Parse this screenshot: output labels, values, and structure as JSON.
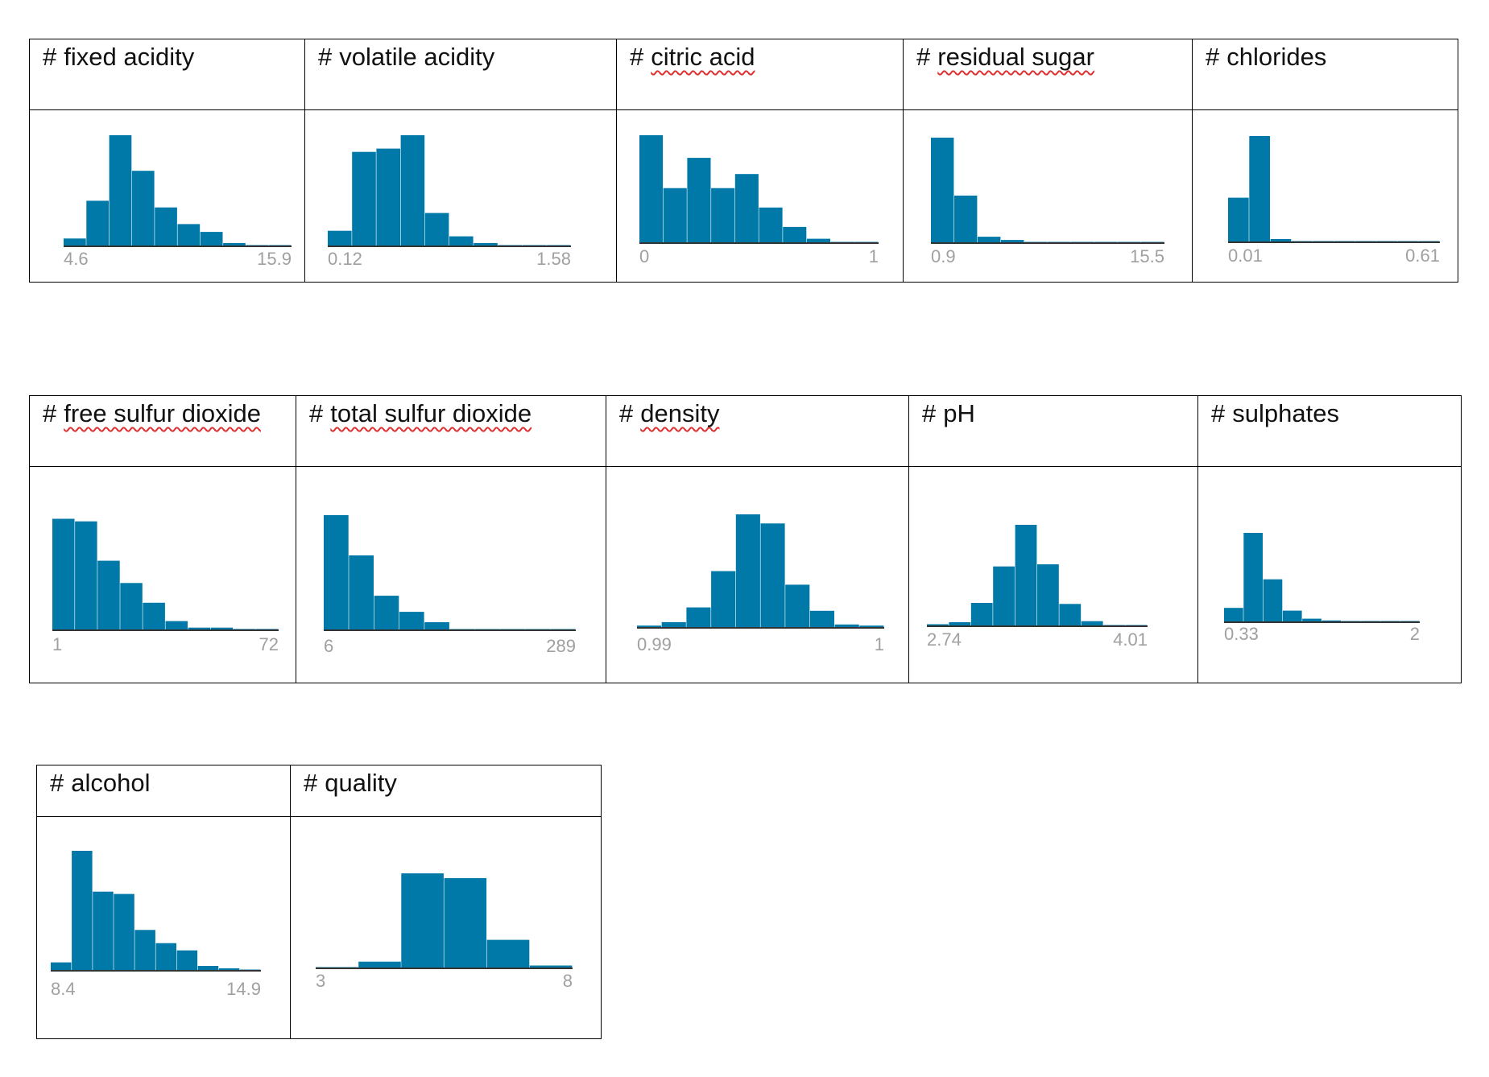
{
  "bar_color": "#0079a8",
  "axis_color": "#333333",
  "chart_data": [
    {
      "type": "bar",
      "title_prefix": "#",
      "title": "fixed acidity",
      "title_spellcheck": false,
      "xmin_label": "4.6",
      "xmax_label": "15.9",
      "values": [
        0.07,
        0.41,
        1.0,
        0.68,
        0.35,
        0.2,
        0.13,
        0.03,
        0.01,
        0.01
      ]
    },
    {
      "type": "bar",
      "title_prefix": "#",
      "title": "volatile acidity",
      "title_spellcheck": false,
      "xmin_label": "0.12",
      "xmax_label": "1.58",
      "values": [
        0.14,
        0.85,
        0.88,
        1.0,
        0.3,
        0.09,
        0.03,
        0.01,
        0.005,
        0.005
      ]
    },
    {
      "type": "bar",
      "title_prefix": "#",
      "title": "citric acid",
      "title_spellcheck": true,
      "xmin_label": "0",
      "xmax_label": "1",
      "values": [
        1.0,
        0.51,
        0.79,
        0.51,
        0.64,
        0.33,
        0.15,
        0.04,
        0.01,
        0.01
      ]
    },
    {
      "type": "bar",
      "title_prefix": "#",
      "title": "residual sugar",
      "title_spellcheck": true,
      "xmin_label": "0.9",
      "xmax_label": "15.5",
      "values": [
        1.0,
        0.45,
        0.06,
        0.03,
        0.01,
        0.01,
        0.005,
        0.005,
        0.003,
        0.003
      ]
    },
    {
      "type": "bar",
      "title_prefix": "#",
      "title": "chlorides",
      "title_spellcheck": false,
      "xmin_label": "0.01",
      "xmax_label": "0.61",
      "values": [
        0.42,
        1.0,
        0.03,
        0.01,
        0.005,
        0.005,
        0.003,
        0.003,
        0.003,
        0.003
      ]
    },
    {
      "type": "bar",
      "title_prefix": "#",
      "title": "free sulfur dioxide",
      "title_spellcheck": true,
      "xmin_label": "1",
      "xmax_label": "72",
      "values": [
        0.85,
        0.83,
        0.53,
        0.36,
        0.21,
        0.07,
        0.02,
        0.02,
        0.01,
        0.01
      ]
    },
    {
      "type": "bar",
      "title_prefix": "#",
      "title": "total sulfur dioxide",
      "title_spellcheck": true,
      "xmin_label": "6",
      "xmax_label": "289",
      "values": [
        1.0,
        0.65,
        0.3,
        0.16,
        0.07,
        0.01,
        0.005,
        0.005,
        0.003,
        0.003
      ]
    },
    {
      "type": "bar",
      "title_prefix": "#",
      "title": "density",
      "title_spellcheck": true,
      "xmin_label": "0.99",
      "xmax_label": "1",
      "values": [
        0.02,
        0.05,
        0.18,
        0.5,
        1.0,
        0.92,
        0.38,
        0.15,
        0.03,
        0.02
      ]
    },
    {
      "type": "bar",
      "title_prefix": "#",
      "title": "pH",
      "title_spellcheck": false,
      "xmin_label": "2.74",
      "xmax_label": "4.01",
      "values": [
        0.02,
        0.04,
        0.23,
        0.59,
        1.0,
        0.61,
        0.22,
        0.05,
        0.01,
        0.01
      ]
    },
    {
      "type": "bar",
      "title_prefix": "#",
      "title": "sulphates",
      "title_spellcheck": false,
      "xmin_label": "0.33",
      "xmax_label": "2",
      "values": [
        0.16,
        1.0,
        0.48,
        0.13,
        0.04,
        0.02,
        0.01,
        0.005,
        0.003,
        0.003
      ]
    },
    {
      "type": "bar",
      "title_prefix": "#",
      "title": "alcohol",
      "title_spellcheck": false,
      "xmin_label": "8.4",
      "xmax_label": "14.9",
      "values": [
        0.07,
        1.0,
        0.66,
        0.64,
        0.34,
        0.23,
        0.17,
        0.04,
        0.02,
        0.01
      ]
    },
    {
      "type": "bar",
      "title_prefix": "#",
      "title": "quality",
      "title_spellcheck": false,
      "xmin_label": "3",
      "xmax_label": "8",
      "values": [
        0.01,
        0.07,
        1.0,
        0.95,
        0.3,
        0.03
      ]
    }
  ]
}
